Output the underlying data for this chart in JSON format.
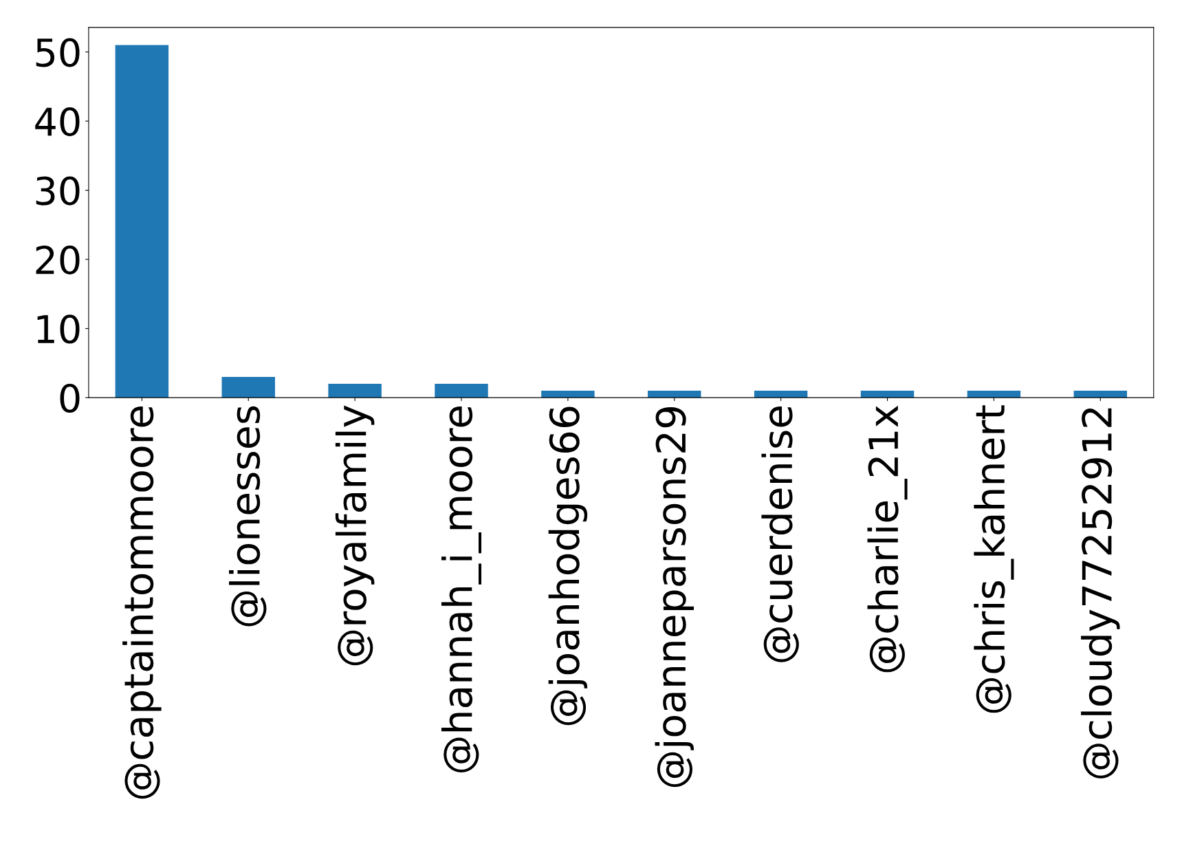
{
  "chart_data": {
    "type": "bar",
    "categories": [
      "@captaintommoore",
      "@lionesses",
      "@royalfamily",
      "@hannah_i_moore",
      "@joanhodges66",
      "@joanneparsons29",
      "@cuerdenise",
      "@charlie_21x",
      "@chris_kahnert",
      "@cloudy77252912"
    ],
    "values": [
      51,
      3,
      2,
      2,
      1,
      1,
      1,
      1,
      1,
      1
    ],
    "color": "#1f77b4",
    "ylim": [
      0,
      53.55
    ],
    "yticks": [
      0,
      10,
      20,
      30,
      40,
      50
    ],
    "grid": false
  }
}
